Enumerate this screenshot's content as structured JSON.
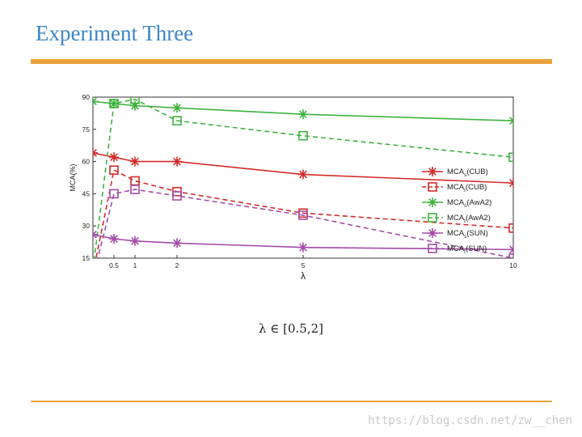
{
  "slide": {
    "title": "Experiment Three",
    "caption": "λ ∈ [0.5,2]",
    "watermark": "https://blog.csdn.net/zw__chen",
    "accent_color": "#e8a33a",
    "title_color": "#3d85c6"
  },
  "chart_data": {
    "type": "line",
    "title": "",
    "xlabel": "λ",
    "ylabel": "MCA(%)",
    "xlim": [
      0,
      10
    ],
    "ylim": [
      15,
      90
    ],
    "xticks": [
      "0.5",
      "1",
      "2",
      "5",
      "10"
    ],
    "xtick_values": [
      0.5,
      1,
      2,
      5,
      10
    ],
    "yticks": [
      "15",
      "30",
      "45",
      "60",
      "75",
      "90"
    ],
    "ytick_values": [
      15,
      30,
      45,
      60,
      75,
      90
    ],
    "legend_position": "right",
    "grid": false,
    "x": [
      0,
      0.5,
      1,
      2,
      5,
      10
    ],
    "series": [
      {
        "name": "MCA_s(CUB)",
        "base": "MCA",
        "sub": "s",
        "suffix": "(CUB)",
        "color": "#d42a2a",
        "style": "solid",
        "marker": "asterisk",
        "values": [
          64,
          62,
          60,
          60,
          54,
          50
        ]
      },
      {
        "name": "MCA_t(CUB)",
        "base": "MCA",
        "sub": "t",
        "suffix": "(CUB)",
        "color": "#d42a2a",
        "style": "dashed",
        "marker": "square",
        "values": [
          8,
          56,
          51,
          46,
          36,
          29
        ]
      },
      {
        "name": "MCA_s(AwA2)",
        "base": "MCA",
        "sub": "s",
        "suffix": "(AwA2)",
        "color": "#3fb23f",
        "style": "solid",
        "marker": "asterisk",
        "values": [
          88,
          87,
          86,
          85,
          82,
          79
        ]
      },
      {
        "name": "MCA_t(AwA2)",
        "base": "MCA",
        "sub": "t",
        "suffix": "(AwA2)",
        "color": "#3fb23f",
        "style": "dashed",
        "marker": "square",
        "values": [
          10,
          87,
          89,
          79,
          72,
          62
        ]
      },
      {
        "name": "MCA_s(SUN)",
        "base": "MCA",
        "sub": "s",
        "suffix": "(SUN)",
        "color": "#a34ba8",
        "style": "solid",
        "marker": "asterisk",
        "values": [
          26,
          24,
          23,
          22,
          20,
          19
        ]
      },
      {
        "name": "MCA_t(SUN)",
        "base": "MCA",
        "sub": "t",
        "suffix": "(SUN)",
        "color": "#a34ba8",
        "style": "dashed",
        "marker": "square",
        "values": [
          6,
          45,
          47,
          44,
          35,
          15
        ]
      }
    ]
  }
}
